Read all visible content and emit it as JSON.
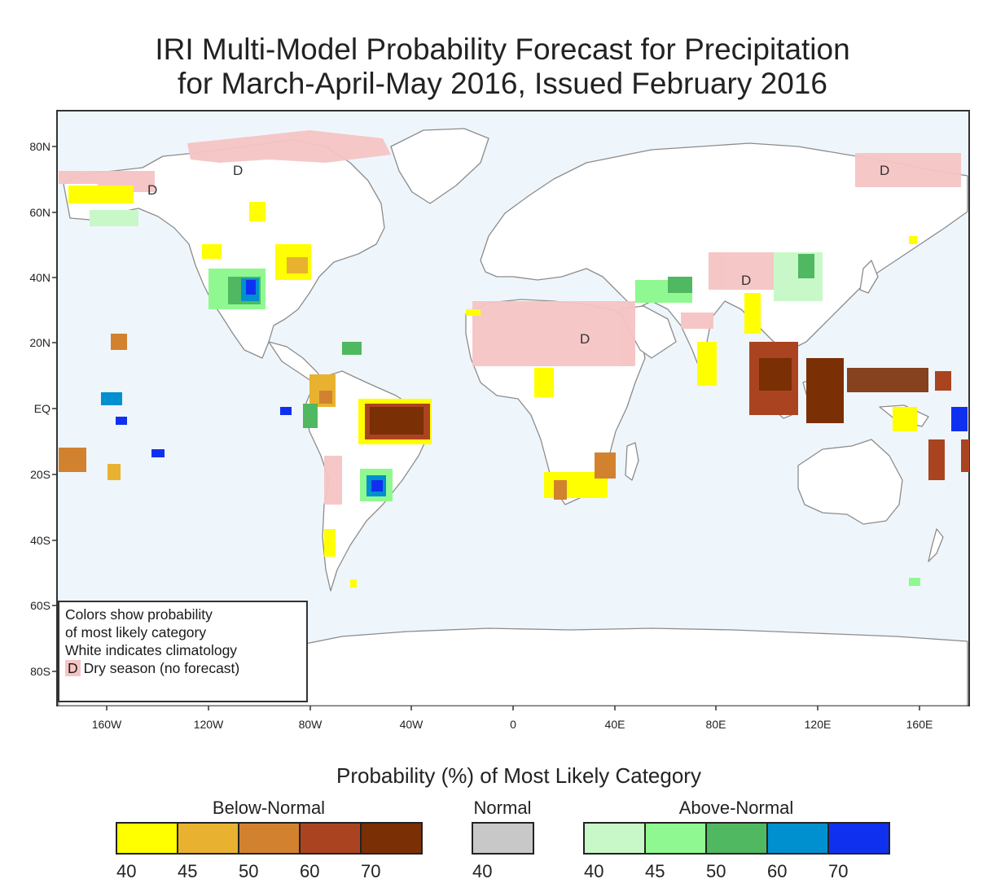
{
  "title": {
    "line1": "IRI Multi-Model Probability Forecast for Precipitation",
    "line2": "for March-April-May 2016, Issued February 2016"
  },
  "map": {
    "lat_labels": [
      "80N",
      "60N",
      "40N",
      "20N",
      "EQ",
      "20S",
      "40S",
      "60S",
      "80S"
    ],
    "lon_labels": [
      "160W",
      "120W",
      "80W",
      "40W",
      "0",
      "40E",
      "80E",
      "120E",
      "160E"
    ],
    "dry_marker": "D",
    "colors": {
      "ocean": "#eef6fc",
      "land": "#ffffff",
      "coast": "#8c8c8c",
      "dry": "#f6c4c4"
    }
  },
  "legend_box": {
    "line1": "Colors show probability",
    "line2": "of most likely category",
    "line3": "White indicates climatology",
    "dry_symbol": "D",
    "line4": "Dry season (no forecast)"
  },
  "colorbar": {
    "title": "Probability (%) of Most Likely Category",
    "below_normal": {
      "label": "Below-Normal",
      "colors": [
        "#ffff00",
        "#e8b230",
        "#d2822f",
        "#aa4420",
        "#7a2f05"
      ],
      "ticks": [
        "40",
        "45",
        "50",
        "60",
        "70"
      ]
    },
    "normal": {
      "label": "Normal",
      "colors": [
        "#c8c8c8"
      ],
      "ticks": [
        "40"
      ]
    },
    "above_normal": {
      "label": "Above-Normal",
      "colors": [
        "#c8f8c8",
        "#90f890",
        "#50b860",
        "#0090d0",
        "#1030f0"
      ],
      "ticks": [
        "40",
        "45",
        "50",
        "60",
        "70"
      ]
    }
  }
}
